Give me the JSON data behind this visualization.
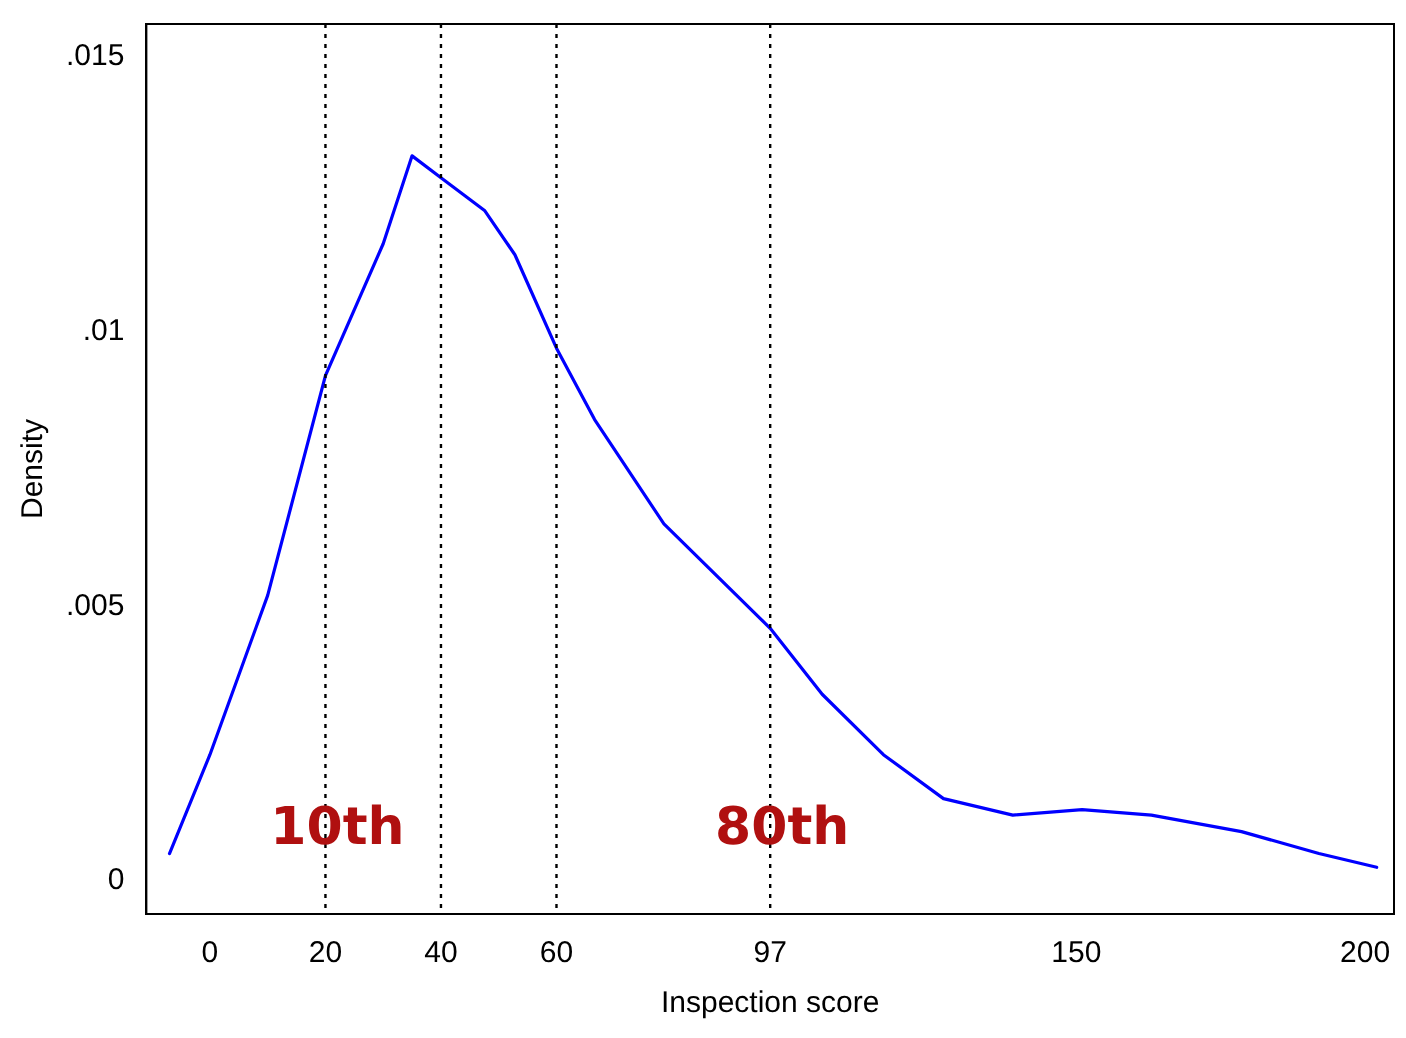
{
  "chart_data": {
    "type": "line",
    "xlabel": "Inspection score",
    "ylabel": "Density",
    "x": [
      -7,
      0,
      10,
      20,
      30,
      35,
      40,
      47.6,
      52.8,
      60,
      66.6,
      78.6,
      97,
      106,
      116.6,
      127,
      139,
      151,
      163,
      178.6,
      192,
      202
    ],
    "series": [
      {
        "color": "#0000ff",
        "values": [
          0.0005,
          0.0023,
          0.0052,
          0.0092,
          0.0116,
          0.0132,
          0.0128,
          0.0122,
          0.0114,
          0.0097,
          0.0084,
          0.0065,
          0.0046,
          0.0034,
          0.0023,
          0.0015,
          0.0012,
          0.0013,
          0.0012,
          0.0009,
          0.0005,
          0.00025
        ]
      }
    ],
    "xlim": [
      -11,
      205
    ],
    "xticks": [
      0,
      20,
      40,
      60,
      97,
      150,
      200
    ],
    "ylim": [
      -0.0006,
      0.0156
    ],
    "yticks": [
      {
        "value": 0,
        "label": "0"
      },
      {
        "value": 0.005,
        "label": ".005"
      },
      {
        "value": 0.01,
        "label": ".01"
      },
      {
        "value": 0.015,
        "label": ".015"
      }
    ],
    "ref_lines": [
      {
        "axis": "x",
        "value": 20,
        "color": "#000000",
        "line_style": "dotted",
        "label": "10th"
      },
      {
        "axis": "x",
        "value": 40,
        "color": "#000000",
        "line_style": "dotted"
      },
      {
        "axis": "x",
        "value": 60,
        "color": "#000000",
        "line_style": "dotted"
      },
      {
        "axis": "x",
        "value": 97,
        "color": "#000000",
        "line_style": "dotted",
        "label": "80th"
      }
    ],
    "grid": false,
    "legend": false,
    "marker": "none",
    "line_style": "solid"
  }
}
